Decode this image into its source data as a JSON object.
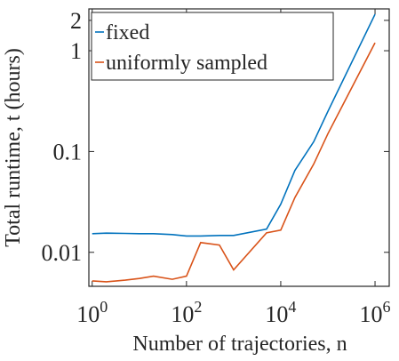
{
  "chart_data": {
    "type": "line",
    "xlabel": "Number of trajectories, n",
    "ylabel": "Total runtime, t (hours)",
    "xscale": "log",
    "yscale": "log",
    "xlim": [
      0.85,
      2000000
    ],
    "ylim": [
      0.0046,
      2.6
    ],
    "xticks": [
      {
        "value": 1,
        "label": "10^0"
      },
      {
        "value": 100,
        "label": "10^2"
      },
      {
        "value": 10000,
        "label": "10^4"
      },
      {
        "value": 1000000,
        "label": "10^6"
      }
    ],
    "yticks": [
      0.01,
      0.1,
      1,
      2
    ],
    "legend": "upper left",
    "x": [
      1,
      2,
      5,
      10,
      20,
      50,
      100,
      200,
      500,
      1000,
      5000,
      10000,
      20000,
      50000,
      100000,
      1000000
    ],
    "series": [
      {
        "name": "fixed",
        "color": "#0072BD",
        "values": [
          0.0153,
          0.0155,
          0.0154,
          0.0153,
          0.0153,
          0.015,
          0.0145,
          0.0145,
          0.0147,
          0.0147,
          0.017,
          0.03,
          0.065,
          0.125,
          0.25,
          2.3
        ]
      },
      {
        "name": "uniformly sampled",
        "color": "#D95319",
        "values": [
          0.0052,
          0.0051,
          0.0053,
          0.0055,
          0.0058,
          0.0054,
          0.0058,
          0.0125,
          0.0118,
          0.0067,
          0.0156,
          0.0166,
          0.035,
          0.075,
          0.15,
          1.2
        ]
      }
    ]
  }
}
